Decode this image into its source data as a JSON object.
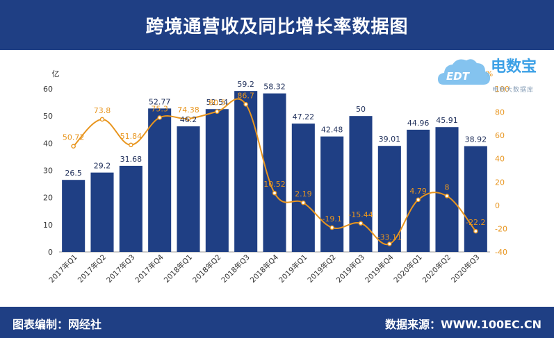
{
  "header": {
    "title": "跨境通营收及同比增长率数据图"
  },
  "footer": {
    "left": "图表编制：网经社",
    "right": "数据来源：WWW.100EC.CN"
  },
  "logo": {
    "brand": "电数宝",
    "sub": "电商大数据库",
    "mark": "EDT"
  },
  "colors": {
    "bar": "#1f3f84",
    "line": "#e8951e",
    "header": "#1f3f84"
  },
  "chart_data": {
    "type": "bar",
    "categories": [
      "2017年Q1",
      "2017年Q2",
      "2017年Q3",
      "2017年Q4",
      "2018年Q1",
      "2018年Q2",
      "2018年Q3",
      "2018年Q4",
      "2019年Q1",
      "2019年Q2",
      "2019年Q3",
      "2019年Q4",
      "2020年Q1",
      "2020年Q2",
      "2020年Q3"
    ],
    "series": [
      {
        "type": "bar",
        "axis": "left",
        "values": [
          26.5,
          29.2,
          31.68,
          52.77,
          46.2,
          52.54,
          59.2,
          58.32,
          47.22,
          42.48,
          50,
          39.01,
          44.96,
          45.91,
          38.92
        ]
      },
      {
        "type": "line",
        "axis": "right",
        "values": [
          50.72,
          73.8,
          51.84,
          75.3,
          74.38,
          80.5,
          86.7,
          10.52,
          2.19,
          -19.1,
          -15.44,
          -33.11,
          4.79,
          8,
          -22.2
        ]
      }
    ],
    "left_axis": {
      "unit": "亿",
      "ylim": [
        0,
        60
      ],
      "ticks": [
        0,
        10,
        20,
        30,
        40,
        50,
        60
      ]
    },
    "right_axis": {
      "unit": "%",
      "ylim": [
        -40,
        100
      ],
      "ticks": [
        -40,
        -20,
        0,
        20,
        40,
        60,
        80,
        100
      ]
    },
    "bar_labels": [
      "26.5",
      "29.2",
      "31.68",
      "52.77",
      "46.2",
      "52.54",
      "59.2",
      "58.32",
      "47.22",
      "42.48",
      "50",
      "39.01",
      "44.96",
      "45.91",
      "38.92"
    ],
    "line_labels": [
      "50.72",
      "73.8",
      "51.84",
      "75.3",
      "74.38",
      "80.5",
      "86.7",
      "10.52",
      "2.19",
      "-19.1",
      "-15.44",
      "-33.11",
      "4.79",
      "8",
      "-22.2"
    ],
    "grid": false
  }
}
